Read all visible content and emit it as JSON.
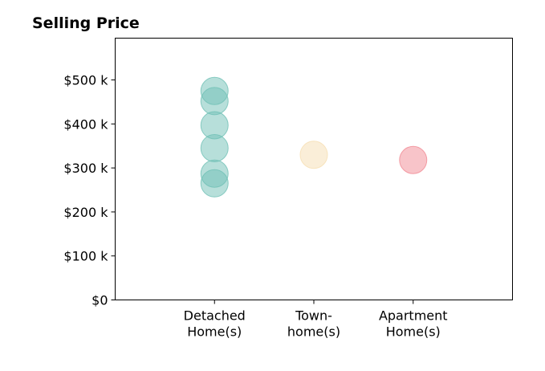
{
  "chart_data": {
    "type": "scatter",
    "title": "Selling Price",
    "xlabel": "",
    "ylabel": "",
    "categories": [
      [
        "Detached",
        "Home(s)"
      ],
      [
        "Town-",
        "home(s)"
      ],
      [
        "Apartment",
        "Home(s)"
      ]
    ],
    "y_ticks": [
      {
        "value": 0,
        "label": "$0"
      },
      {
        "value": 100,
        "label": "$100 k"
      },
      {
        "value": 200,
        "label": "$200 k"
      },
      {
        "value": 300,
        "label": "$300 k"
      },
      {
        "value": 400,
        "label": "$400 k"
      },
      {
        "value": 500,
        "label": "$500 k"
      }
    ],
    "ylim": [
      0,
      595
    ],
    "xlim": [
      0,
      4
    ],
    "grid": false,
    "series": [
      {
        "category": 0,
        "color": "#6fc0b5",
        "values": [
          475,
          452,
          397,
          345,
          287,
          265
        ]
      },
      {
        "category": 1,
        "color": "#f6deb1",
        "values": [
          330
        ]
      },
      {
        "category": 2,
        "color": "#f18a93",
        "values": [
          318
        ]
      }
    ],
    "marker_opacity": 0.5
  }
}
